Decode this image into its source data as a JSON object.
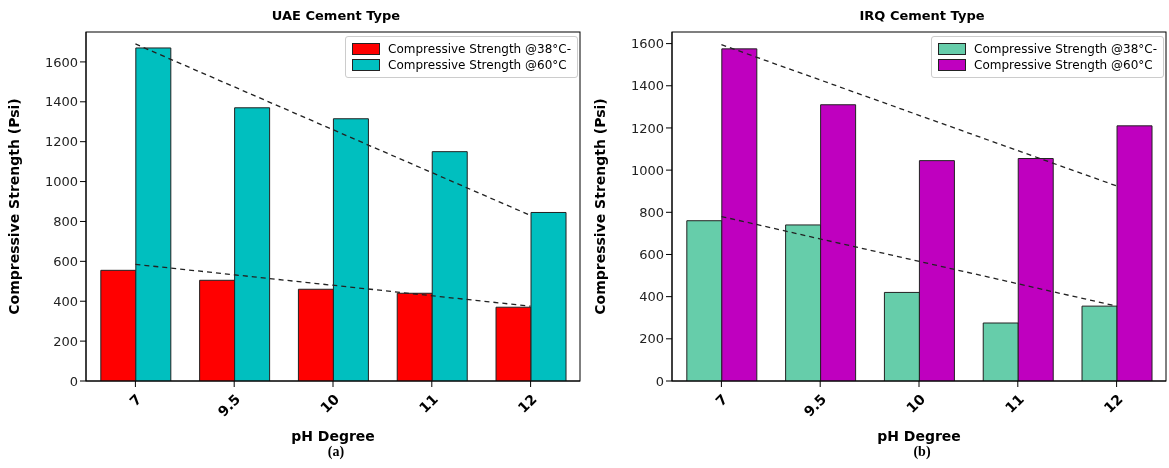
{
  "chart_data": [
    {
      "type": "bar",
      "title": "UAE Cement Type",
      "xlabel": "pH Degree",
      "ylabel": "Compressive Strength (Psi)",
      "categories": [
        "7",
        "9.5",
        "10",
        "11",
        "12"
      ],
      "series": [
        {
          "name": "Compressive Strength @38°C-",
          "color": "#ff0000",
          "values": [
            555,
            505,
            460,
            440,
            370
          ]
        },
        {
          "name": "Compressive Strength @60°C",
          "color": "#00bfbf",
          "values": [
            1670,
            1370,
            1315,
            1150,
            845
          ]
        },
        {
          "type": "line",
          "line_style": "dashed",
          "color": "#222222",
          "values": [
            1690,
            null,
            null,
            null,
            830
          ]
        },
        {
          "type": "line",
          "line_style": "dashed",
          "color": "#222222",
          "values": [
            585,
            null,
            null,
            null,
            375
          ]
        }
      ],
      "ylim": [
        0,
        1750
      ],
      "yticks": [
        0,
        200,
        400,
        600,
        800,
        1000,
        1200,
        1400,
        1600
      ],
      "legend": "top right",
      "annotations": [
        "(a)"
      ]
    },
    {
      "type": "bar",
      "title": "IRQ Cement Type",
      "xlabel": "pH Degree",
      "ylabel": "Compressive Strength (Psi)",
      "categories": [
        "7",
        "9.5",
        "10",
        "11",
        "12"
      ],
      "series": [
        {
          "name": "Compressive Strength @38°C-",
          "color": "#66cdaa",
          "values": [
            760,
            740,
            420,
            275,
            355
          ]
        },
        {
          "name": "Compressive Strength @60°C",
          "color": "#bf00bf",
          "values": [
            1575,
            1310,
            1045,
            1055,
            1210
          ]
        },
        {
          "type": "line",
          "line_style": "dashed",
          "color": "#222222",
          "values": [
            1595,
            null,
            null,
            null,
            925
          ]
        },
        {
          "type": "line",
          "line_style": "dashed",
          "color": "#222222",
          "values": [
            780,
            null,
            null,
            null,
            355
          ]
        }
      ],
      "ylim": [
        0,
        1655
      ],
      "yticks": [
        0,
        200,
        400,
        600,
        800,
        1000,
        1200,
        1400,
        1600
      ],
      "legend": "top right",
      "annotations": [
        "(b)"
      ]
    }
  ]
}
